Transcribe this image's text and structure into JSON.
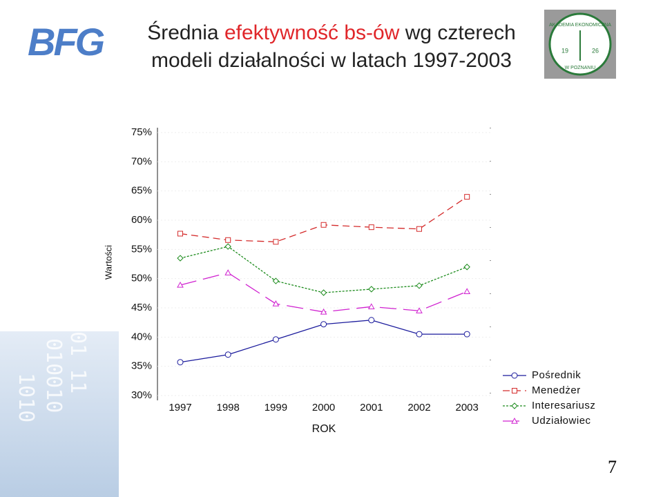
{
  "header": {
    "logo_left": "BFG",
    "logo_right_top": "AKADEMIA EKONOMICZNA",
    "logo_right_bottom": "W POZNANIU",
    "logo_right_year_a": "19",
    "logo_right_year_b": "26",
    "title_part1": "Średnia",
    "title_highlight": "efektywność bs-ów",
    "title_part2": "wg czterech",
    "title_line2": "modeli działalności w latach 1997-2003"
  },
  "chart_data": {
    "type": "line",
    "y_label": "Wartości",
    "x_label": "ROK",
    "categories": [
      "1997",
      "1998",
      "1999",
      "2000",
      "2001",
      "2002",
      "2003"
    ],
    "series": [
      {
        "name": "Pośrednik",
        "color": "#1a1a9c",
        "dash": "none",
        "marker": "circle",
        "values": [
          35.7,
          37.0,
          39.6,
          42.2,
          42.9,
          40.5,
          40.5
        ]
      },
      {
        "name": "Menedżer",
        "color": "#d42a2a",
        "dash": "10 6",
        "marker": "square",
        "values": [
          57.7,
          56.6,
          56.3,
          59.2,
          58.8,
          58.5,
          64.0
        ]
      },
      {
        "name": "Interesariusz",
        "color": "#1a8a1a",
        "dash": "3 2",
        "marker": "diamond",
        "values": [
          53.5,
          55.5,
          49.6,
          47.6,
          48.2,
          48.8,
          52.0
        ]
      },
      {
        "name": "Udziałowiec",
        "color": "#d020d0",
        "dash": "24 10",
        "marker": "triangle",
        "values": [
          48.9,
          51.0,
          45.7,
          44.3,
          45.2,
          44.5,
          47.8
        ]
      }
    ],
    "ylim": [
      30,
      75
    ],
    "yticks": [
      {
        "value": 30,
        "label": "30%"
      },
      {
        "value": 35,
        "label": "35%"
      },
      {
        "value": 40,
        "label": "40%"
      },
      {
        "value": 45,
        "label": "45%"
      },
      {
        "value": 50,
        "label": "50%"
      },
      {
        "value": 55,
        "label": "55%"
      },
      {
        "value": 60,
        "label": "60%"
      },
      {
        "value": 65,
        "label": "65%"
      },
      {
        "value": 70,
        "label": "70%"
      },
      {
        "value": 75,
        "label": "75%"
      }
    ],
    "grid": true,
    "legend": "bottom-right"
  },
  "page_number": "7"
}
